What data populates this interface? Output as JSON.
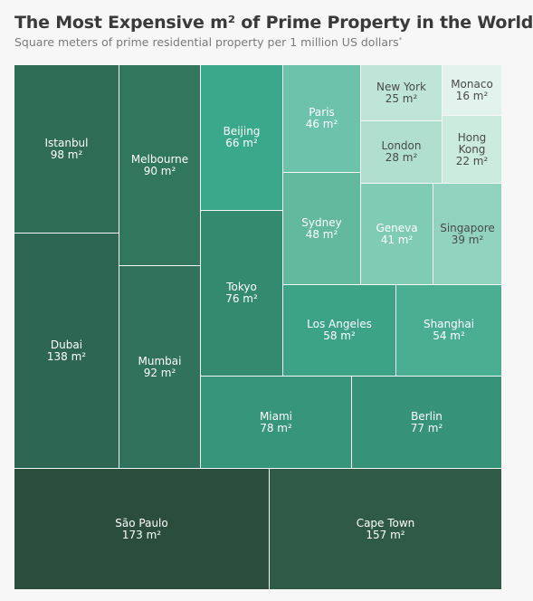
{
  "header": {
    "title": "The Most Expensive m² of Prime Property in the World",
    "subtitle": "Square meters of prime residential property per 1 million US dollars",
    "subtitle_mark": "*"
  },
  "chart_data": {
    "type": "treemap",
    "unit": "m²",
    "items": [
      {
        "label": "Istanbul",
        "value": 98,
        "value_label": "98 m²",
        "color": "#2f6d57",
        "text": "#ffffff"
      },
      {
        "label": "Dubai",
        "value": 138,
        "value_label": "138 m²",
        "color": "#2d6652",
        "text": "#ffffff"
      },
      {
        "label": "Melbourne",
        "value": 90,
        "value_label": "90 m²",
        "color": "#30775e",
        "text": "#ffffff"
      },
      {
        "label": "Mumbai",
        "value": 92,
        "value_label": "92 m²",
        "color": "#30725b",
        "text": "#ffffff"
      },
      {
        "label": "Beijing",
        "value": 66,
        "value_label": "66 m²",
        "color": "#3aa88a",
        "text": "#ffffff"
      },
      {
        "label": "Tokyo",
        "value": 76,
        "value_label": "76 m²",
        "color": "#348a6e",
        "text": "#ffffff"
      },
      {
        "label": "Paris",
        "value": 46,
        "value_label": "46 m²",
        "color": "#6cc2aa",
        "text": "#ffffff"
      },
      {
        "label": "Sydney",
        "value": 48,
        "value_label": "48 m²",
        "color": "#62b99e",
        "text": "#ffffff"
      },
      {
        "label": "New York",
        "value": 25,
        "value_label": "25 m²",
        "color": "#bfe5d8",
        "text": "#4a4a4a"
      },
      {
        "label": "Monaco",
        "value": 16,
        "value_label": "16 m²",
        "color": "#e1f3ec",
        "text": "#4a4a4a"
      },
      {
        "label": "London",
        "value": 28,
        "value_label": "28 m²",
        "color": "#b0dfcf",
        "text": "#4a4a4a"
      },
      {
        "label": "Hong\nKong",
        "value": 22,
        "value_label": "22 m²",
        "color": "#cbebdf",
        "text": "#4a4a4a"
      },
      {
        "label": "Geneva",
        "value": 41,
        "value_label": "41 m²",
        "color": "#7fcbb4",
        "text": "#ffffff"
      },
      {
        "label": "Singapore",
        "value": 39,
        "value_label": "39 m²",
        "color": "#92d3bf",
        "text": "#4a4a4a"
      },
      {
        "label": "Los Angeles",
        "value": 58,
        "value_label": "58 m²",
        "color": "#3da387",
        "text": "#ffffff"
      },
      {
        "label": "Shanghai",
        "value": 54,
        "value_label": "54 m²",
        "color": "#4aae92",
        "text": "#ffffff"
      },
      {
        "label": "Miami",
        "value": 78,
        "value_label": "78 m²",
        "color": "#37967a",
        "text": "#ffffff"
      },
      {
        "label": "Berlin",
        "value": 77,
        "value_label": "77 m²",
        "color": "#369377",
        "text": "#ffffff"
      },
      {
        "label": "São Paulo",
        "value": 173,
        "value_label": "173 m²",
        "color": "#2b4d3c",
        "text": "#ffffff"
      },
      {
        "label": "Cape Town",
        "value": 157,
        "value_label": "157 m²",
        "color": "#2f5a46",
        "text": "#ffffff"
      }
    ]
  }
}
